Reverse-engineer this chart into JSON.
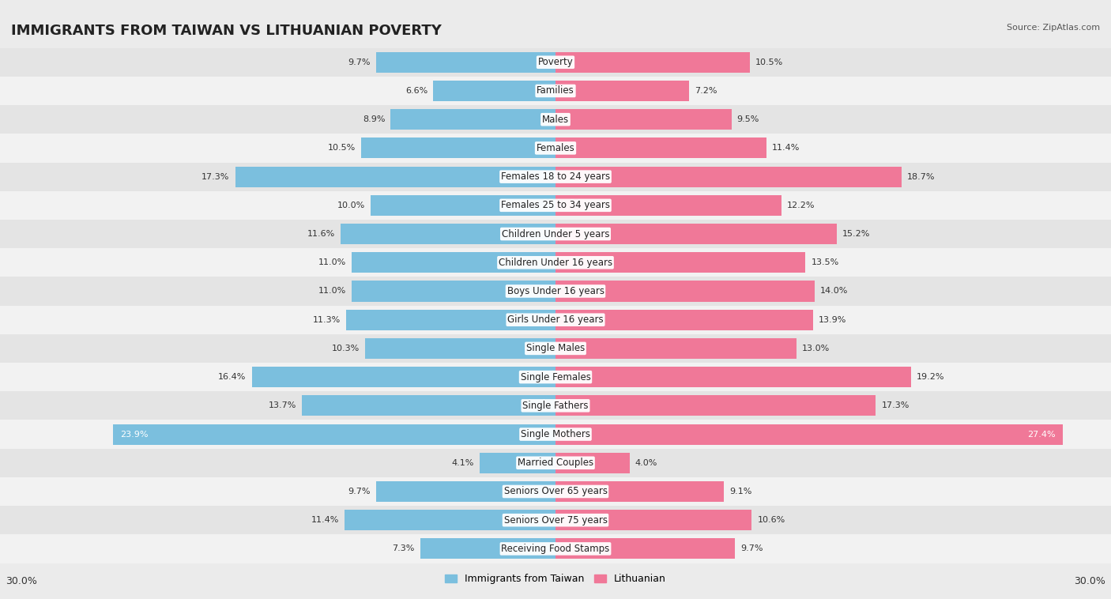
{
  "title": "IMMIGRANTS FROM TAIWAN VS LITHUANIAN POVERTY",
  "source": "Source: ZipAtlas.com",
  "categories": [
    "Poverty",
    "Families",
    "Males",
    "Females",
    "Females 18 to 24 years",
    "Females 25 to 34 years",
    "Children Under 5 years",
    "Children Under 16 years",
    "Boys Under 16 years",
    "Girls Under 16 years",
    "Single Males",
    "Single Females",
    "Single Fathers",
    "Single Mothers",
    "Married Couples",
    "Seniors Over 65 years",
    "Seniors Over 75 years",
    "Receiving Food Stamps"
  ],
  "taiwan_values": [
    9.7,
    6.6,
    8.9,
    10.5,
    17.3,
    10.0,
    11.6,
    11.0,
    11.0,
    11.3,
    10.3,
    16.4,
    13.7,
    23.9,
    4.1,
    9.7,
    11.4,
    7.3
  ],
  "lithuanian_values": [
    10.5,
    7.2,
    9.5,
    11.4,
    18.7,
    12.2,
    15.2,
    13.5,
    14.0,
    13.9,
    13.0,
    19.2,
    17.3,
    27.4,
    4.0,
    9.1,
    10.6,
    9.7
  ],
  "taiwan_color": "#7BBFDE",
  "lithuanian_color": "#F07898",
  "taiwan_label": "Immigrants from Taiwan",
  "lithuanian_label": "Lithuanian",
  "axis_max": 30.0,
  "bg_color": "#EBEBEB",
  "row_color_odd": "#E4E4E4",
  "row_color_even": "#F2F2F2",
  "title_fontsize": 13,
  "label_fontsize": 8.5,
  "value_fontsize": 8,
  "footer_fontsize": 9,
  "source_fontsize": 8
}
